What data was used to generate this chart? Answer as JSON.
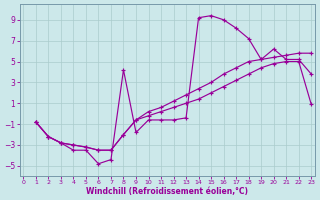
{
  "xlabel": "Windchill (Refroidissement éolien,°C)",
  "background_color": "#cce8ea",
  "line_color": "#990099",
  "grid_color": "#aacccc",
  "xlim_min": -0.3,
  "xlim_max": 23.3,
  "ylim_min": -6.0,
  "ylim_max": 10.5,
  "yticks": [
    -5,
    -3,
    -1,
    1,
    3,
    5,
    7,
    9
  ],
  "xticks": [
    0,
    1,
    2,
    3,
    4,
    5,
    6,
    7,
    8,
    9,
    10,
    11,
    12,
    13,
    14,
    15,
    16,
    17,
    18,
    19,
    20,
    21,
    22,
    23
  ],
  "line1_x": [
    1,
    2,
    3,
    4,
    5,
    6,
    7,
    8,
    9,
    10,
    11,
    12,
    13,
    14,
    15,
    16,
    17,
    18,
    19,
    20,
    21,
    22,
    23
  ],
  "line1_y": [
    -0.8,
    -2.2,
    -2.8,
    -3.5,
    -3.5,
    -4.8,
    -4.4,
    4.2,
    -1.8,
    -0.6,
    -0.6,
    -0.6,
    -0.4,
    9.2,
    9.4,
    9.0,
    8.2,
    7.2,
    5.2,
    6.2,
    5.2,
    5.2,
    3.8
  ],
  "line2_x": [
    1,
    2,
    3,
    4,
    5,
    6,
    7,
    8,
    9,
    10,
    11,
    12,
    13,
    14,
    15,
    16,
    17,
    18,
    19,
    20,
    21,
    22,
    23
  ],
  "line2_y": [
    -0.8,
    -2.2,
    -2.8,
    -3.0,
    -3.2,
    -3.5,
    -3.5,
    -2.0,
    -0.6,
    0.2,
    0.6,
    1.2,
    1.8,
    2.4,
    3.0,
    3.8,
    4.4,
    5.0,
    5.2,
    5.4,
    5.6,
    5.8,
    5.8
  ],
  "line3_x": [
    1,
    2,
    3,
    4,
    5,
    6,
    7,
    8,
    9,
    10,
    11,
    12,
    13,
    14,
    15,
    16,
    17,
    18,
    19,
    20,
    21,
    22,
    23
  ],
  "line3_y": [
    -0.8,
    -2.2,
    -2.8,
    -3.0,
    -3.2,
    -3.5,
    -3.5,
    -2.0,
    -0.6,
    -0.2,
    0.2,
    0.6,
    1.0,
    1.4,
    2.0,
    2.6,
    3.2,
    3.8,
    4.4,
    4.8,
    5.0,
    5.0,
    0.9
  ]
}
